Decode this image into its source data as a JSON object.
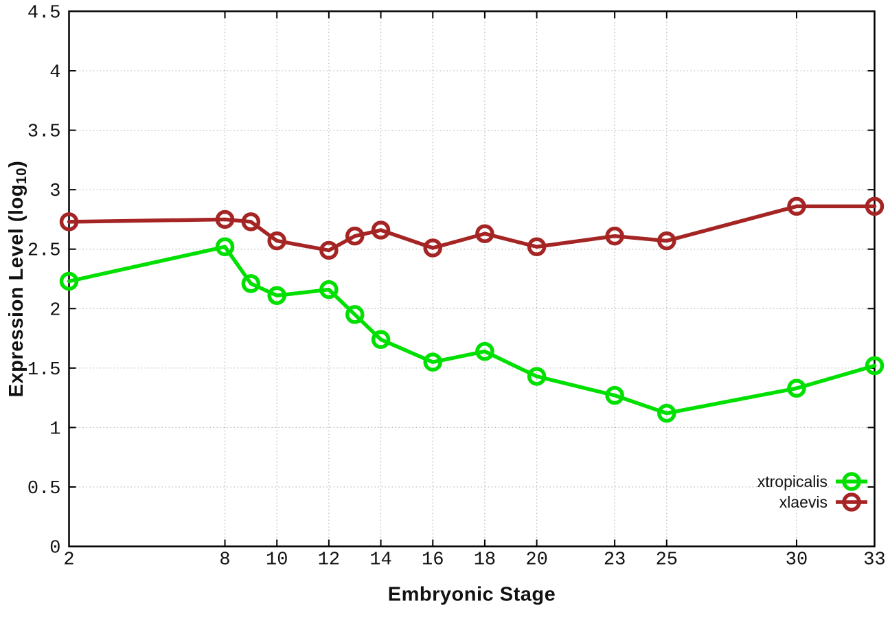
{
  "figure": {
    "background": "#ffffff",
    "border_color": "#000000",
    "grid_color": "#b8b8b8",
    "tick_color": "#000000"
  },
  "chart_data": {
    "type": "line",
    "title": "",
    "xlabel": "Embryonic Stage",
    "ylabel": {
      "prefix": "Expression Level (log",
      "subscript": "10",
      "suffix": ")"
    },
    "x": [
      2,
      8,
      9,
      10,
      12,
      13,
      14,
      16,
      18,
      20,
      23,
      25,
      30,
      33
    ],
    "xlim": [
      2,
      33
    ],
    "ylim": [
      0,
      4.5
    ],
    "xticks": [
      {
        "value": 2,
        "label": "2"
      },
      {
        "value": 8,
        "label": "8"
      },
      {
        "value": 10,
        "label": "10"
      },
      {
        "value": 12,
        "label": "12"
      },
      {
        "value": 14,
        "label": "14"
      },
      {
        "value": 16,
        "label": "16"
      },
      {
        "value": 18,
        "label": "18"
      },
      {
        "value": 20,
        "label": "20"
      },
      {
        "value": 23,
        "label": "23"
      },
      {
        "value": 25,
        "label": "25"
      },
      {
        "value": 30,
        "label": "30"
      },
      {
        "value": 33,
        "label": "33"
      }
    ],
    "yticks": [
      {
        "value": 0,
        "label": "0"
      },
      {
        "value": 0.5,
        "label": "0.5"
      },
      {
        "value": 1,
        "label": "1"
      },
      {
        "value": 1.5,
        "label": "1.5"
      },
      {
        "value": 2,
        "label": "2"
      },
      {
        "value": 2.5,
        "label": "2.5"
      },
      {
        "value": 3,
        "label": "3"
      },
      {
        "value": 3.5,
        "label": "3.5"
      },
      {
        "value": 4,
        "label": "4"
      },
      {
        "value": 4.5,
        "label": "4.5"
      }
    ],
    "grid": true,
    "legend_position": "inside-bottom-right",
    "series": [
      {
        "name": "xtropicalis",
        "color": "#00e000",
        "marker": "open-circle",
        "values": [
          2.23,
          2.52,
          2.21,
          2.11,
          2.16,
          1.95,
          1.74,
          1.55,
          1.64,
          1.43,
          1.27,
          1.12,
          1.33,
          1.52
        ]
      },
      {
        "name": "xlaevis",
        "color": "#a52525",
        "marker": "open-circle",
        "values": [
          2.73,
          2.75,
          2.73,
          2.57,
          2.49,
          2.61,
          2.66,
          2.51,
          2.63,
          2.52,
          2.61,
          2.57,
          2.86,
          2.86
        ]
      }
    ]
  }
}
